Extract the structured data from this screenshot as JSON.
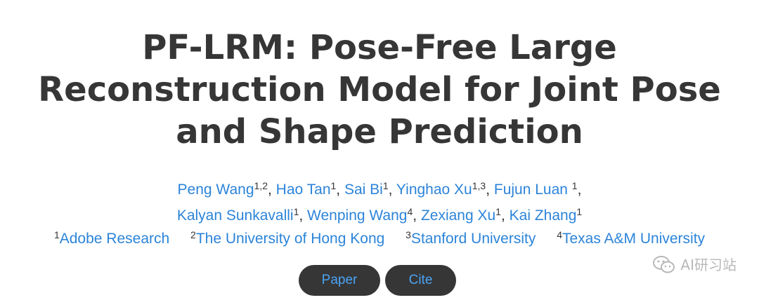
{
  "title_lines": [
    "PF-LRM: Pose-Free Large",
    "Reconstruction Model for Joint Pose",
    "and Shape Prediction"
  ],
  "authors_line1": [
    {
      "name": "Peng Wang",
      "sup": "1,2",
      "sep": ", "
    },
    {
      "name": "Hao Tan",
      "sup": "1",
      "sep": ", "
    },
    {
      "name": "Sai Bi",
      "sup": "1",
      "sep": ", "
    },
    {
      "name": "Yinghao Xu",
      "sup": "1,3",
      "sep": ", "
    },
    {
      "name": "Fujun Luan ",
      "sup": "1",
      "sep": ","
    }
  ],
  "authors_line2": [
    {
      "name": "Kalyan Sunkavalli",
      "sup": "1",
      "sep": ", "
    },
    {
      "name": "Wenping Wang",
      "sup": "4",
      "sep": ", "
    },
    {
      "name": "Zexiang Xu",
      "sup": "1",
      "sep": ", "
    },
    {
      "name": "Kai Zhang",
      "sup": "1",
      "sep": ""
    }
  ],
  "affiliations": [
    {
      "sup": "1",
      "name": "Adobe Research"
    },
    {
      "sup": "2",
      "name": "The University of Hong Kong"
    },
    {
      "sup": "3",
      "name": "Stanford University"
    },
    {
      "sup": "4",
      "name": "Texas A&M University"
    }
  ],
  "buttons": {
    "paper": "Paper",
    "cite": "Cite"
  },
  "watermark": {
    "text": "AI研习站",
    "icon": "wechat-icon"
  },
  "colors": {
    "title": "#363636",
    "link": "#2c84d9",
    "button_bg": "#363636",
    "button_text": "#4aa3f5"
  }
}
